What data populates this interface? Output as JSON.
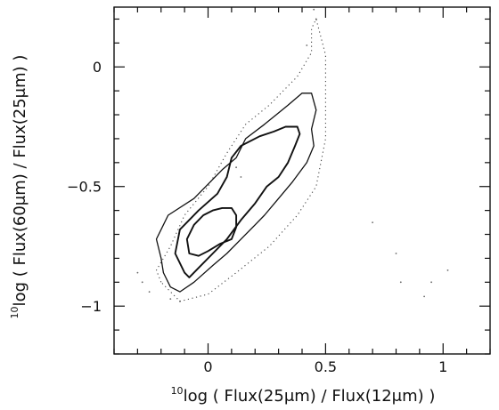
{
  "chart_data": {
    "type": "contour",
    "xlabel": "10log ( Flux(25μm) / Flux(12μm) )",
    "ylabel": "10log ( Flux(60μm) / Flux(25μm) )",
    "xlabel_parts": {
      "sup": "10",
      "main": "log ( Flux(25",
      "mu": "μ",
      "tail": "m) / Flux(12",
      "mu2": "μ",
      "end": "m) )"
    },
    "ylabel_parts": {
      "sup": "10",
      "main": "log ( Flux(60",
      "mu": "μ",
      "tail": "m) / Flux(25",
      "mu2": "μ",
      "end": "m) )"
    },
    "xlim": [
      -0.4,
      1.2
    ],
    "ylim": [
      -1.2,
      0.25
    ],
    "x_ticks": [
      {
        "value": 0,
        "label": "0"
      },
      {
        "value": 0.5,
        "label": "0.5"
      },
      {
        "value": 1,
        "label": "1"
      }
    ],
    "y_ticks": [
      {
        "value": 0,
        "label": "0"
      },
      {
        "value": -0.5,
        "label": "−0.5"
      },
      {
        "value": -1,
        "label": "−1"
      }
    ],
    "contours": [
      {
        "level": "outer",
        "style": "dotted",
        "points": [
          [
            -0.2,
            -0.9
          ],
          [
            -0.22,
            -0.85
          ],
          [
            -0.16,
            -0.75
          ],
          [
            -0.1,
            -0.62
          ],
          [
            0.0,
            -0.5
          ],
          [
            0.08,
            -0.36
          ],
          [
            0.16,
            -0.24
          ],
          [
            0.26,
            -0.16
          ],
          [
            0.38,
            -0.04
          ],
          [
            0.44,
            0.06
          ],
          [
            0.44,
            0.16
          ],
          [
            0.46,
            0.2
          ],
          [
            0.5,
            0.05
          ],
          [
            0.5,
            -0.1
          ],
          [
            0.5,
            -0.3
          ],
          [
            0.46,
            -0.5
          ],
          [
            0.38,
            -0.62
          ],
          [
            0.26,
            -0.75
          ],
          [
            0.12,
            -0.86
          ],
          [
            0.0,
            -0.95
          ],
          [
            -0.12,
            -0.98
          ],
          [
            -0.2,
            -0.9
          ]
        ]
      },
      {
        "level": "outer-solid",
        "style": "solid",
        "points": [
          [
            -0.2,
            -0.8
          ],
          [
            -0.22,
            -0.72
          ],
          [
            -0.17,
            -0.62
          ],
          [
            -0.06,
            -0.55
          ],
          [
            0.06,
            -0.43
          ],
          [
            0.12,
            -0.38
          ],
          [
            0.16,
            -0.3
          ],
          [
            0.24,
            -0.24
          ],
          [
            0.34,
            -0.16
          ],
          [
            0.4,
            -0.11
          ],
          [
            0.44,
            -0.11
          ],
          [
            0.46,
            -0.18
          ],
          [
            0.44,
            -0.26
          ],
          [
            0.45,
            -0.33
          ],
          [
            0.42,
            -0.4
          ],
          [
            0.36,
            -0.48
          ],
          [
            0.3,
            -0.55
          ],
          [
            0.24,
            -0.62
          ],
          [
            0.2,
            -0.66
          ],
          [
            0.14,
            -0.72
          ],
          [
            0.08,
            -0.78
          ],
          [
            0.02,
            -0.83
          ],
          [
            -0.06,
            -0.9
          ],
          [
            -0.12,
            -0.94
          ],
          [
            -0.16,
            -0.92
          ],
          [
            -0.19,
            -0.86
          ],
          [
            -0.2,
            -0.8
          ]
        ]
      },
      {
        "level": "middle",
        "style": "solid",
        "points": [
          [
            -0.1,
            -0.86
          ],
          [
            -0.14,
            -0.78
          ],
          [
            -0.12,
            -0.68
          ],
          [
            -0.04,
            -0.6
          ],
          [
            0.04,
            -0.53
          ],
          [
            0.08,
            -0.46
          ],
          [
            0.1,
            -0.38
          ],
          [
            0.14,
            -0.33
          ],
          [
            0.22,
            -0.29
          ],
          [
            0.28,
            -0.27
          ],
          [
            0.33,
            -0.25
          ],
          [
            0.38,
            -0.25
          ],
          [
            0.39,
            -0.28
          ],
          [
            0.37,
            -0.33
          ],
          [
            0.34,
            -0.4
          ],
          [
            0.3,
            -0.46
          ],
          [
            0.25,
            -0.5
          ],
          [
            0.2,
            -0.57
          ],
          [
            0.14,
            -0.64
          ],
          [
            0.08,
            -0.72
          ],
          [
            0.02,
            -0.78
          ],
          [
            -0.04,
            -0.84
          ],
          [
            -0.08,
            -0.88
          ],
          [
            -0.1,
            -0.86
          ]
        ]
      },
      {
        "level": "inner",
        "style": "solid",
        "points": [
          [
            -0.08,
            -0.78
          ],
          [
            -0.09,
            -0.72
          ],
          [
            -0.06,
            -0.66
          ],
          [
            -0.02,
            -0.62
          ],
          [
            0.02,
            -0.6
          ],
          [
            0.06,
            -0.59
          ],
          [
            0.1,
            -0.59
          ],
          [
            0.12,
            -0.62
          ],
          [
            0.12,
            -0.67
          ],
          [
            0.1,
            -0.72
          ],
          [
            0.05,
            -0.74
          ],
          [
            0.0,
            -0.77
          ],
          [
            -0.04,
            -0.79
          ],
          [
            -0.08,
            -0.78
          ]
        ]
      }
    ],
    "noise_dots": [
      [
        0.45,
        0.24
      ],
      [
        0.46,
        0.2
      ],
      [
        0.42,
        0.09
      ],
      [
        0.1,
        -0.38
      ],
      [
        0.12,
        -0.42
      ],
      [
        0.14,
        -0.46
      ],
      [
        0.7,
        -0.65
      ],
      [
        0.8,
        -0.78
      ],
      [
        0.82,
        -0.9
      ],
      [
        0.95,
        -0.9
      ],
      [
        1.02,
        -0.85
      ],
      [
        0.92,
        -0.96
      ],
      [
        -0.3,
        -0.86
      ],
      [
        -0.28,
        -0.9
      ],
      [
        -0.25,
        -0.94
      ],
      [
        -0.12,
        -0.98
      ],
      [
        -0.16,
        -0.97
      ]
    ]
  }
}
